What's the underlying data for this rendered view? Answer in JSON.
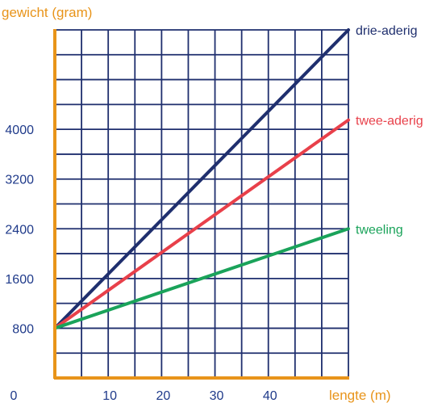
{
  "chart_data": {
    "type": "line",
    "xlabel": "lengte (m)",
    "ylabel": "gewicht (gram)",
    "xlim": [
      0,
      55
    ],
    "ylim": [
      0,
      5600
    ],
    "x_ticks": [
      {
        "value": 0,
        "label": "0"
      },
      {
        "value": 10,
        "label": "10"
      },
      {
        "value": 20,
        "label": "20"
      },
      {
        "value": 30,
        "label": "30"
      },
      {
        "value": 40,
        "label": "40"
      }
    ],
    "y_ticks": [
      {
        "value": 800,
        "label": "800"
      },
      {
        "value": 1600,
        "label": "1600"
      },
      {
        "value": 2400,
        "label": "2400"
      },
      {
        "value": 3200,
        "label": "3200"
      },
      {
        "value": 4000,
        "label": "4000"
      }
    ],
    "grid": true,
    "grid_step_x": 5,
    "grid_step_y": 400,
    "series": [
      {
        "name": "drie-aderig",
        "color": "#1f2f6e",
        "x": [
          0,
          55
        ],
        "y": [
          800,
          5600
        ]
      },
      {
        "name": "twee-aderig",
        "color": "#e8404a",
        "x": [
          0,
          55
        ],
        "y": [
          800,
          4150
        ]
      },
      {
        "name": "tweeling",
        "color": "#1aa35a",
        "x": [
          0,
          55
        ],
        "y": [
          800,
          2400
        ]
      }
    ],
    "colors": {
      "axis": "#e8941a",
      "axis_label": "#e8941a",
      "tick_label": "#1f3a8a",
      "grid": "#1f2f6e"
    }
  }
}
